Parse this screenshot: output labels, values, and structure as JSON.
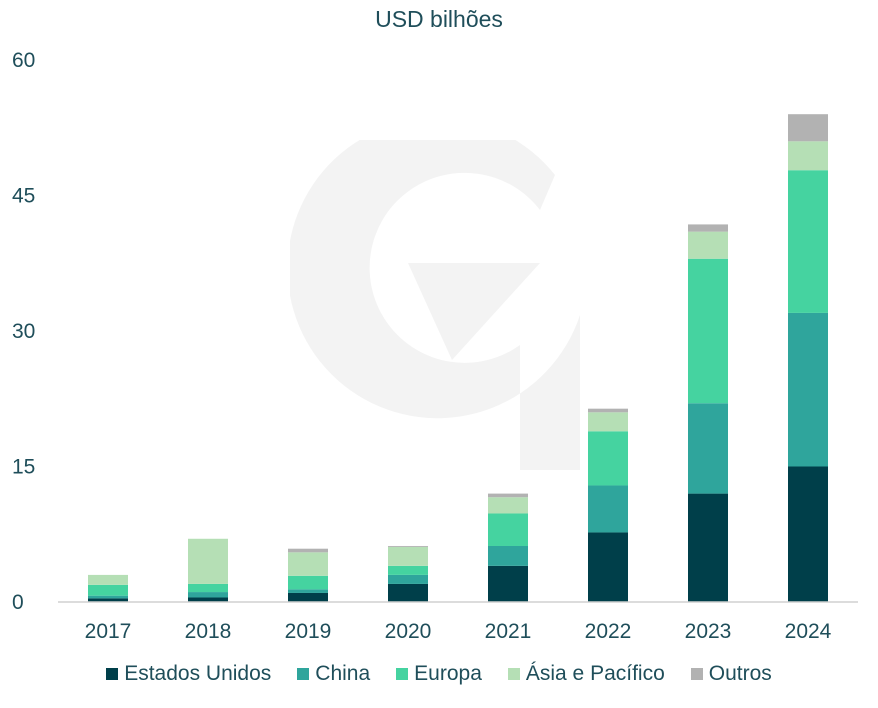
{
  "chart_data": {
    "type": "bar",
    "stacked": true,
    "title": "USD bilhões",
    "xlabel": "",
    "ylabel": "",
    "categories": [
      "2017",
      "2018",
      "2019",
      "2020",
      "2021",
      "2022",
      "2023",
      "2024"
    ],
    "ylim": [
      0,
      60
    ],
    "yticks": [
      0,
      15,
      30,
      45,
      60
    ],
    "grid": false,
    "legend_position": "bottom",
    "series": [
      {
        "name": "Estados Unidos",
        "color": "#003f4a",
        "values": [
          0.4,
          0.5,
          1.0,
          2.0,
          4.0,
          7.7,
          12.0,
          15.0
        ]
      },
      {
        "name": "China",
        "color": "#2fa59c",
        "values": [
          0.3,
          0.6,
          0.4,
          1.0,
          2.2,
          5.2,
          10.0,
          17.0
        ]
      },
      {
        "name": "Europa",
        "color": "#45d3a0",
        "values": [
          1.2,
          0.9,
          1.5,
          1.0,
          3.6,
          6.0,
          16.0,
          15.8
        ]
      },
      {
        "name": "Ásia e Pacífico",
        "color": "#b5dfb5",
        "values": [
          1.1,
          5.0,
          2.6,
          2.1,
          1.8,
          2.1,
          3.0,
          3.2
        ]
      },
      {
        "name": "Outros",
        "color": "#b2b2b2",
        "values": [
          0.0,
          0.0,
          0.4,
          0.1,
          0.4,
          0.4,
          0.8,
          3.0
        ]
      }
    ]
  }
}
